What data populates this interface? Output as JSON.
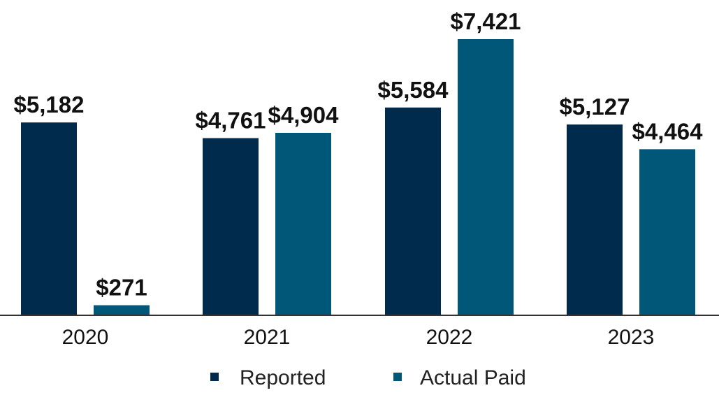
{
  "chart_data": {
    "type": "bar",
    "categories": [
      "2020",
      "2021",
      "2022",
      "2023"
    ],
    "series": [
      {
        "name": "Reported",
        "values": [
          5182,
          4761,
          5584,
          5127
        ],
        "labels": [
          "$5,182",
          "$4,761",
          "$5,584",
          "$5,127"
        ],
        "color": "#002b4d"
      },
      {
        "name": "Actual Paid",
        "values": [
          271,
          4904,
          7421,
          4464
        ],
        "labels": [
          "$271",
          "$4,904",
          "$7,421",
          "$4,464"
        ],
        "color": "#005778"
      }
    ],
    "ylim": [
      0,
      7421
    ],
    "grid": false,
    "legend": "bottom-center",
    "axis_color": "#333333"
  }
}
